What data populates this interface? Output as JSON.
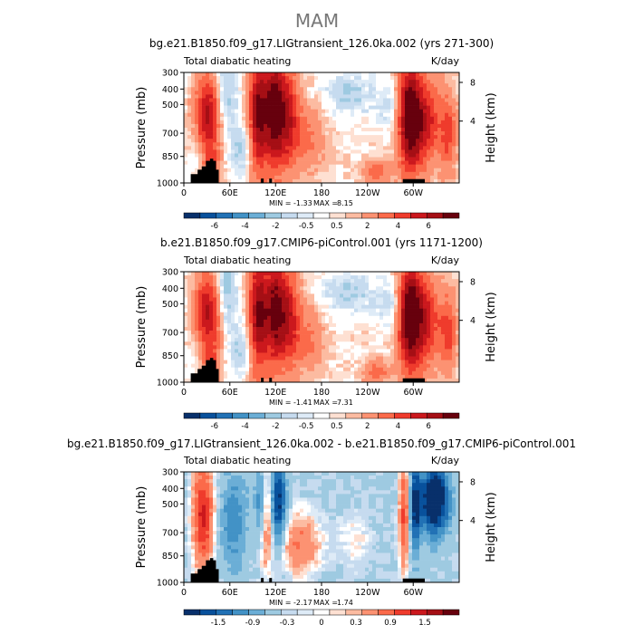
{
  "figure": {
    "main_title": "MAM",
    "field_label": "Total diabatic heating",
    "units": "K/day",
    "y_left_label": "Pressure  (mb)",
    "y_right_label": "Height  (km)",
    "pressure_ticks": [
      "300",
      "400",
      "500",
      "700",
      "850",
      "1000"
    ],
    "height_ticks": [
      "8",
      "4"
    ],
    "lon_ticks": [
      "0",
      "60E",
      "120E",
      "180",
      "120W",
      "60W"
    ]
  },
  "chart_data": [
    {
      "type": "heatmap",
      "title": "bg.e21.B1850.f09_g17.LIGtransient_126.0ka.002 (yrs 271-300)",
      "subtitle": "Total diabatic heating",
      "units": "K/day",
      "ylabel": "Pressure  (mb)",
      "y2label": "Height  (km)",
      "x_ticks": [
        "0",
        "60E",
        "120E",
        "180",
        "120W",
        "60W"
      ],
      "y_ticks": [
        "300",
        "400",
        "500",
        "700",
        "850",
        "1000"
      ],
      "y2_ticks": [
        "8",
        "4"
      ],
      "min_text": "MIN =",
      "min": "-1.33",
      "max_text": "MAX =",
      "max": "8.15",
      "colorbar_levels": [
        "-6",
        "-4",
        "-2",
        "-0.5",
        "0.5",
        "2",
        "4",
        "6"
      ]
    },
    {
      "type": "heatmap",
      "title": "b.e21.B1850.f09_g17.CMIP6-piControl.001 (yrs 1171-1200)",
      "subtitle": "Total diabatic heating",
      "units": "K/day",
      "ylabel": "Pressure  (mb)",
      "y2label": "Height  (km)",
      "x_ticks": [
        "0",
        "60E",
        "120E",
        "180",
        "120W",
        "60W"
      ],
      "y_ticks": [
        "300",
        "400",
        "500",
        "700",
        "850",
        "1000"
      ],
      "y2_ticks": [
        "8",
        "4"
      ],
      "min_text": "MIN =",
      "min": "-1.41",
      "max_text": "MAX =",
      "max": "7.31",
      "colorbar_levels": [
        "-6",
        "-4",
        "-2",
        "-0.5",
        "0.5",
        "2",
        "4",
        "6"
      ]
    },
    {
      "type": "heatmap",
      "title": "bg.e21.B1850.f09_g17.LIGtransient_126.0ka.002 - b.e21.B1850.f09_g17.CMIP6-piControl.001",
      "subtitle": "Total diabatic heating",
      "units": "K/day",
      "ylabel": "Pressure  (mb)",
      "y2label": "Height  (km)",
      "x_ticks": [
        "0",
        "60E",
        "120E",
        "180",
        "120W",
        "60W"
      ],
      "y_ticks": [
        "300",
        "400",
        "500",
        "700",
        "850",
        "1000"
      ],
      "y2_ticks": [
        "8",
        "4"
      ],
      "min_text": "MIN =",
      "min": "-2.17",
      "max_text": "MAX =",
      "max": "1.74",
      "colorbar_levels": [
        "-1.5",
        "-0.9",
        "-0.3",
        "0",
        "0.3",
        "0.9",
        "1.5"
      ]
    }
  ],
  "colors": {
    "palette": [
      "#08306b",
      "#08519c",
      "#2171b5",
      "#4292c6",
      "#6baed6",
      "#9ecae1",
      "#c6dbef",
      "#deebf7",
      "#ffffff",
      "#fee0d2",
      "#fcbba1",
      "#fc9272",
      "#fb6a4a",
      "#ef3b2c",
      "#cb181d",
      "#a50f15",
      "#67000d"
    ],
    "terrain": "#000000"
  }
}
